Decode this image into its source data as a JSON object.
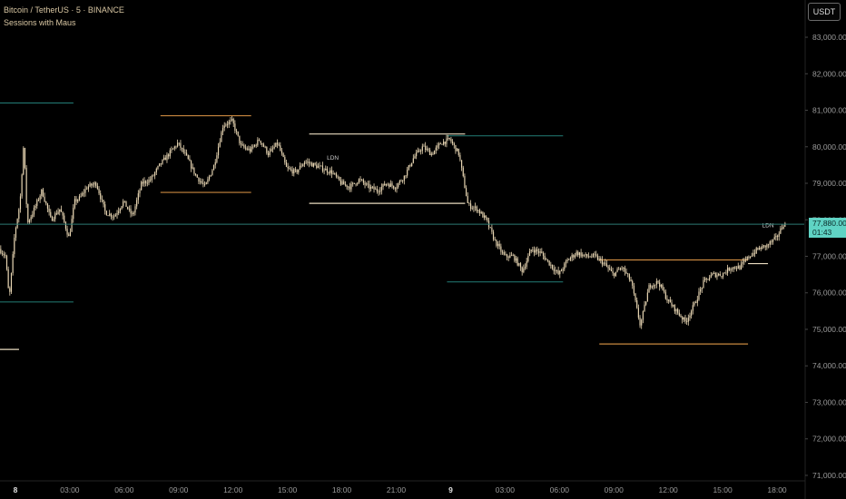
{
  "header": {
    "title": "Bitcoin / TetherUS · 5 · BINANCE",
    "indicator": "Sessions with Maus"
  },
  "currency_button": "USDT",
  "price_badge": {
    "price": "77,880.00",
    "countdown": "01:43"
  },
  "colors": {
    "candle": "#e8d6b3",
    "session_teal": "#1f6f69",
    "session_orange": "#c8873f",
    "session_cream": "#e9dcc0",
    "current_price_line": "#2c7a73",
    "axis_text": "#9a9a9a"
  },
  "chart_data": {
    "type": "candlestick",
    "title": "Bitcoin / TetherUS · 5 · BINANCE",
    "y_axis": {
      "ticks": [
        "71,000.00",
        "72,000.00",
        "73,000.00",
        "74,000.00",
        "75,000.00",
        "76,000.00",
        "77,000.00",
        "78,000.00",
        "79,000.00",
        "80,000.00",
        "81,000.00",
        "82,000.00",
        "83,000.00"
      ],
      "range": [
        70850,
        84020
      ]
    },
    "x_axis": {
      "tick_labels": [
        "8",
        "03:00",
        "06:00",
        "09:00",
        "12:00",
        "15:00",
        "18:00",
        "21:00",
        "9",
        "03:00",
        "06:00",
        "09:00",
        "12:00",
        "15:00",
        "18:00"
      ],
      "tick_hours": [
        0,
        3,
        6,
        9,
        12,
        15,
        18,
        21,
        24,
        27,
        30,
        33,
        36,
        39,
        42
      ],
      "bold_labels": [
        "8",
        "9"
      ],
      "range_hours": [
        -0.85,
        43.5
      ]
    },
    "price_path_hours": [
      -0.85,
      -0.5,
      -0.3,
      0.0,
      0.3,
      0.5,
      0.7,
      1.0,
      1.5,
      2.0,
      2.5,
      3.0,
      3.3,
      3.6,
      4.0,
      4.5,
      5.0,
      5.5,
      6.0,
      6.5,
      7.0,
      7.5,
      8.0,
      8.5,
      9.0,
      9.5,
      10.0,
      10.5,
      11.0,
      11.5,
      12.0,
      12.5,
      13.0,
      13.5,
      14.0,
      14.5,
      15.0,
      15.5,
      16.0,
      16.5,
      17.0,
      17.5,
      18.0,
      18.5,
      19.0,
      19.5,
      20.0,
      20.5,
      21.0,
      21.5,
      22.0,
      22.5,
      23.0,
      23.5,
      24.0,
      24.5,
      25.0,
      25.5,
      26.0,
      26.5,
      27.0,
      27.5,
      28.0,
      28.5,
      29.0,
      29.5,
      30.0,
      30.5,
      31.0,
      31.5,
      32.0,
      32.5,
      33.0,
      33.5,
      34.0,
      34.5,
      35.0,
      35.5,
      36.0,
      36.5,
      37.0,
      37.5,
      38.0,
      38.5,
      39.0,
      39.5,
      40.0,
      40.5,
      41.0,
      41.5,
      42.0,
      42.4
    ],
    "price_path_values": [
      77200,
      77000,
      75800,
      77600,
      78500,
      80100,
      77900,
      78200,
      78800,
      78000,
      78300,
      77500,
      78500,
      78600,
      78900,
      79000,
      78200,
      78100,
      78500,
      78100,
      79000,
      79100,
      79500,
      79800,
      80100,
      79700,
      79200,
      78900,
      79500,
      80600,
      80700,
      80000,
      79900,
      80200,
      79800,
      80100,
      79400,
      79300,
      79600,
      79500,
      79400,
      79300,
      79000,
      78900,
      79100,
      78900,
      78800,
      79000,
      78900,
      79200,
      79700,
      80000,
      79800,
      80100,
      80200,
      79800,
      78400,
      78300,
      78000,
      77400,
      77000,
      77000,
      76600,
      77200,
      77100,
      76800,
      76500,
      76900,
      77100,
      77000,
      77000,
      76800,
      76500,
      76700,
      76300,
      75100,
      76200,
      76300,
      75800,
      75500,
      75200,
      75700,
      76300,
      76500,
      76500,
      76700,
      76700,
      77000,
      77200,
      77300,
      77500,
      77880
    ]
  },
  "sessions": [
    {
      "hours": [
        -0.85,
        3.2
      ],
      "high": 81200,
      "low": 75750,
      "color": "teal"
    },
    {
      "hours": [
        -0.85,
        0.2
      ],
      "low": 74450,
      "color": "cream"
    },
    {
      "hours": [
        8,
        13
      ],
      "high": 80850,
      "low": 78750,
      "color": "orange"
    },
    {
      "hours": [
        16.2,
        24.8
      ],
      "high": 80350,
      "low": 78450,
      "color": "cream"
    },
    {
      "hours": [
        23.8,
        30.2
      ],
      "high": 80300,
      "low": 76300,
      "color": "teal"
    },
    {
      "hours": [
        32.2,
        40.4
      ],
      "high": 76900,
      "low": 74600,
      "color": "orange"
    },
    {
      "hours": [
        40.4,
        41.5
      ],
      "low": 76800,
      "color": "cream"
    }
  ],
  "session_labels": [
    {
      "text": "LDN",
      "hour": 17.5,
      "price": 79650
    },
    {
      "text": "LDN",
      "hour": 41.5,
      "price": 77800
    }
  ],
  "current_price": 77880
}
